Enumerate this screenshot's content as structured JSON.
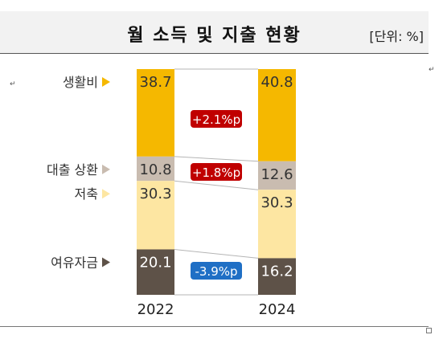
{
  "header": {
    "title": "월 소득 및 지출 현황",
    "unit": "[단위: %]"
  },
  "chart_data": {
    "type": "bar",
    "stacked": true,
    "title": "월 소득 및 지출 현황",
    "unit": "[단위: %]",
    "categories": [
      "2022",
      "2024"
    ],
    "series": [
      {
        "name": "생활비",
        "values": [
          38.7,
          40.8
        ],
        "color": "#f5b800",
        "label_color": "#333333",
        "arrow_color": "#f5b800"
      },
      {
        "name": "대출 상환",
        "values": [
          10.8,
          12.6
        ],
        "color": "#c9bcb0",
        "label_color": "#333333",
        "arrow_color": "#c9bcb0"
      },
      {
        "name": "저축",
        "values": [
          30.3,
          30.3
        ],
        "color": "#fde6a2",
        "label_color": "#333333",
        "arrow_color": "#fde6a2"
      },
      {
        "name": "여유자금",
        "values": [
          20.1,
          16.2
        ],
        "color": "#5e5248",
        "label_color": "#ffffff",
        "arrow_color": "#5e5248"
      }
    ],
    "changes": [
      {
        "label": "+2.1%p",
        "color": "#c00000"
      },
      {
        "label": "+1.8%p",
        "color": "#c00000"
      },
      null,
      {
        "label": "-3.9%p",
        "color": "#1f6fc5"
      }
    ]
  }
}
